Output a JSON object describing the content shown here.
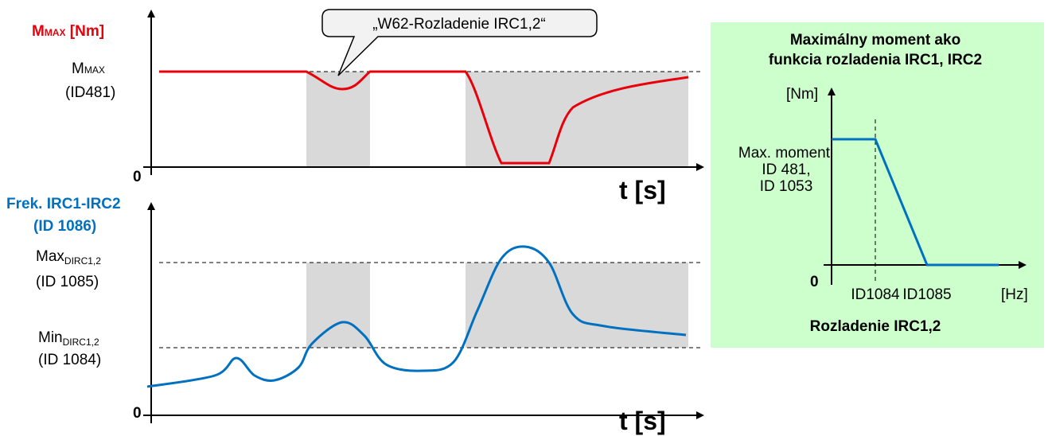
{
  "top": {
    "axis_label": {
      "main": "M",
      "sub": "MAX",
      "unit": " [Nm]"
    },
    "max_label": {
      "main": "M",
      "sub": "MAX",
      "id": "(ID481)"
    },
    "callout": "„W62-Rozladenie IRC1,2“",
    "origin": "0",
    "time_label": "t [s]"
  },
  "bottom": {
    "axis_label": [
      "Frek. IRC1-IRC2",
      "(ID 1086)"
    ],
    "max_label": {
      "main": "Max",
      "sub": "DIRC1,2",
      "id": "(ID 1085)"
    },
    "min_label": {
      "main": "Min",
      "sub": "DIRC1,2",
      "id": "(ID 1084)"
    },
    "origin": "0",
    "time_label": "t [s]"
  },
  "panel": {
    "title": [
      "Maximálny moment ako",
      "funkcia rozladenia IRC1, IRC2"
    ],
    "y_unit": "[Nm]",
    "y_label": [
      "Max. moment",
      "ID 481,",
      "ID 1053"
    ],
    "origin": "0",
    "x_ticks": [
      "ID1084",
      "ID1085"
    ],
    "x_unit": "[Hz]",
    "x_label": "Rozladenie IRC1,2"
  }
}
